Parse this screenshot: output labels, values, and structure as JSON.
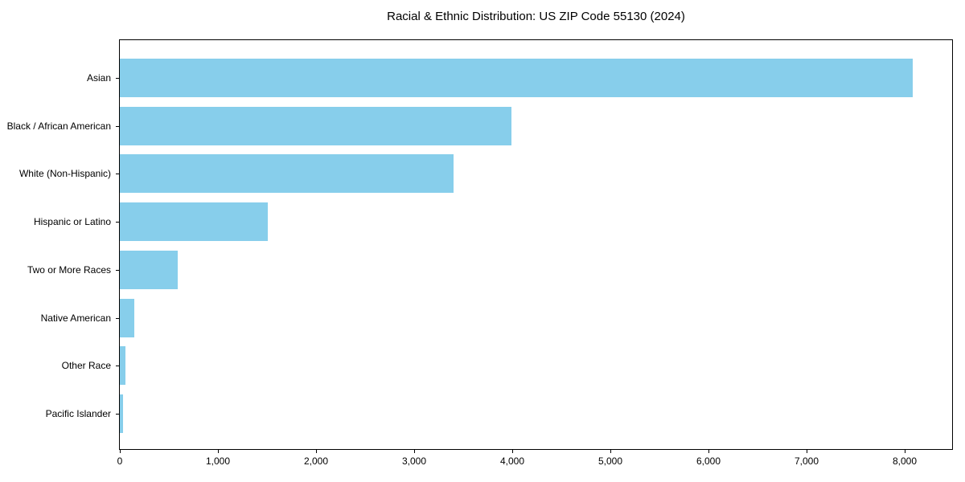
{
  "title": "Racial & Ethnic Distribution: US ZIP Code 55130 (2024)",
  "chart_data": {
    "type": "bar",
    "orientation": "horizontal",
    "title": "Racial & Ethnic Distribution: US ZIP Code 55130 (2024)",
    "categories": [
      "Asian",
      "Black / African American",
      "White (Non-Hispanic)",
      "Hispanic or Latino",
      "Two or More Races",
      "Native American",
      "Other Race",
      "Pacific Islander"
    ],
    "values": [
      8080,
      3990,
      3400,
      1510,
      590,
      150,
      60,
      30
    ],
    "xlabel": "",
    "ylabel": "",
    "xlim": [
      0,
      8480
    ],
    "x_ticks": [
      0,
      1000,
      2000,
      3000,
      4000,
      5000,
      6000,
      7000,
      8000
    ],
    "x_tick_labels": [
      "0",
      "1,000",
      "2,000",
      "3,000",
      "4,000",
      "5,000",
      "6,000",
      "7,000",
      "8,000"
    ],
    "bar_color": "#87CEEB",
    "axis_color": "#000000",
    "background_color": "#ffffff",
    "grid": false,
    "legend": "none"
  }
}
